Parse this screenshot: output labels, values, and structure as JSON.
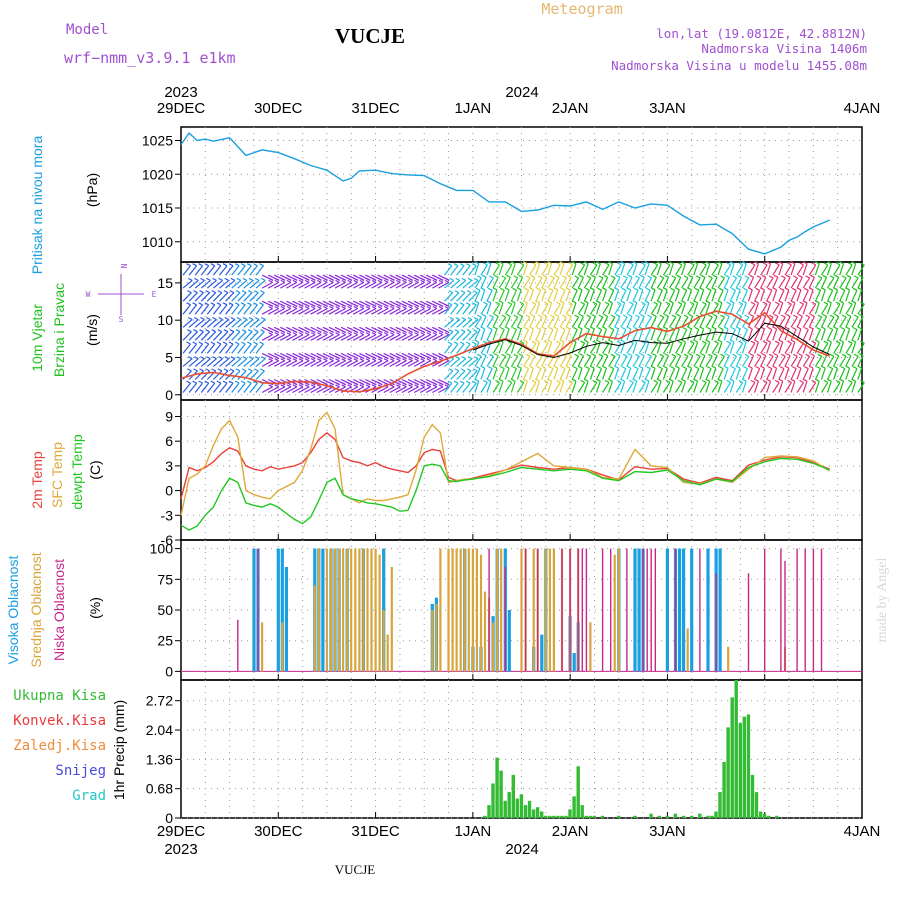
{
  "header": {
    "title": "VUCJE",
    "model_label": "Model",
    "model_name": "wrf−nmm_v3.9.1  e1km",
    "meteogram_label": "Meteogram",
    "lonlat": "lon,lat (19.0812E, 42.8812N)",
    "elevation": "Nadmorska Visina 1406m",
    "model_elevation": "Nadmorska Visina u modelu 1455.08m",
    "footer_station": "VUCJE",
    "watermark": "made by Angel"
  },
  "colors": {
    "pressure": "#1a9fe0",
    "wind_label": "#22c022",
    "temp_2m": "#e8403a",
    "temp_sfc": "#e0a838",
    "dewpoint": "#22c822",
    "cloud_high": "#1a9fe0",
    "cloud_mid": "#d9a43a",
    "cloud_low": "#c8288a",
    "precip_total": "#33bb33",
    "precip_conv": "#e83a3a",
    "precip_frozen": "#f08c3a",
    "snow": "#4a4ae0",
    "graupel": "#22c8c8",
    "model_text": "#a050d0",
    "meteogram_text": "#e8b870"
  },
  "chart_data": [
    {
      "type": "line",
      "name": "pressure",
      "ylabel_1": "Pritisak na nivou mora",
      "ylabel_2": "(hPa)",
      "ylim": [
        1007,
        1027
      ],
      "yticks": [
        1010,
        1015,
        1020,
        1025
      ],
      "x_hours": [
        0,
        2,
        4,
        6,
        8,
        12,
        16,
        20,
        24,
        28,
        32,
        36,
        40,
        42,
        44,
        48,
        52,
        56,
        60,
        64,
        68,
        72,
        76,
        80,
        84,
        88,
        92,
        96,
        100,
        104,
        108,
        112,
        116,
        120,
        124,
        128,
        132,
        136,
        140,
        144,
        148,
        150,
        152,
        154,
        156,
        160
      ],
      "values": [
        1024.4,
        1026.1,
        1025.0,
        1025.2,
        1024.9,
        1025.4,
        1022.8,
        1023.6,
        1023.2,
        1022.3,
        1021.3,
        1020.6,
        1019.0,
        1019.4,
        1020.5,
        1020.6,
        1020.1,
        1019.9,
        1019.8,
        1018.6,
        1017.6,
        1017.6,
        1015.9,
        1015.9,
        1014.5,
        1014.7,
        1015.4,
        1015.3,
        1015.9,
        1014.8,
        1015.9,
        1015.0,
        1015.6,
        1015.4,
        1013.8,
        1012.5,
        1012.6,
        1011.2,
        1008.9,
        1008.2,
        1009.2,
        1010.2,
        1010.7,
        1011.5,
        1012.2,
        1013.2
      ]
    },
    {
      "type": "line",
      "name": "wind",
      "ylabel_1": "10m Vjetar",
      "ylabel_2": "Brzina i Pravac",
      "ylabel_3": "(m/s)",
      "compass": "N",
      "compass_w": "W",
      "compass_e": "E",
      "compass_s": "S",
      "ylim": [
        -0.7,
        17.8
      ],
      "yticks": [
        0,
        5,
        10,
        15
      ],
      "speed_x": [
        0,
        4,
        8,
        12,
        16,
        20,
        24,
        28,
        32,
        36,
        40,
        44,
        48,
        52,
        56,
        60,
        64,
        68,
        72,
        76,
        80,
        84,
        88,
        92,
        96,
        100,
        104,
        108,
        112,
        116,
        120,
        124,
        128,
        132,
        136,
        140,
        144,
        148,
        152,
        156,
        160
      ],
      "speed_values": [
        2.2,
        2.8,
        3.0,
        2.6,
        2.3,
        1.6,
        1.5,
        1.8,
        1.7,
        1.2,
        0.5,
        0.4,
        0.8,
        1.5,
        2.8,
        3.8,
        4.5,
        5.3,
        6.2,
        7.0,
        7.5,
        6.8,
        5.5,
        5.2,
        7.0,
        8.2,
        7.8,
        7.5,
        8.6,
        9.0,
        8.5,
        9.2,
        10.5,
        11.2,
        10.8,
        9.5,
        11.0,
        8.6,
        7.4,
        6.0,
        5.2
      ],
      "dew_line_x": [
        72,
        76,
        80,
        84,
        88,
        92,
        96,
        100,
        104,
        108,
        112,
        116,
        120,
        124,
        128,
        132,
        136,
        140,
        144,
        148,
        152,
        156,
        160
      ],
      "dew_line_values": [
        6.0,
        6.8,
        7.4,
        6.6,
        5.4,
        5.0,
        5.6,
        6.5,
        7.0,
        6.6,
        7.3,
        7.0,
        6.9,
        7.5,
        8.0,
        8.4,
        8.2,
        7.2,
        9.6,
        9.2,
        7.8,
        6.4,
        5.4
      ]
    },
    {
      "type": "line",
      "name": "temperature",
      "ylabel_1": "2m Temp",
      "ylabel_2": "SFC Temp",
      "ylabel_3": "dewpt Temp",
      "ylabel_4": "(C)",
      "ylim": [
        -6,
        11
      ],
      "yticks": [
        -6,
        -3,
        0,
        3,
        6,
        9
      ],
      "x_hours": [
        0,
        2,
        4,
        6,
        8,
        10,
        12,
        14,
        16,
        18,
        20,
        22,
        24,
        26,
        28,
        30,
        32,
        34,
        36,
        38,
        40,
        42,
        44,
        46,
        48,
        50,
        52,
        54,
        56,
        58,
        60,
        62,
        64,
        66,
        68,
        70,
        72,
        76,
        80,
        84,
        88,
        92,
        96,
        100,
        104,
        108,
        112,
        116,
        120,
        124,
        128,
        132,
        136,
        140,
        144,
        148,
        152,
        156,
        160
      ],
      "series": [
        {
          "name": "2m Temp",
          "values": [
            -1.0,
            2.8,
            2.4,
            2.8,
            3.5,
            4.5,
            5.2,
            4.8,
            3.0,
            2.6,
            2.4,
            2.9,
            2.6,
            2.8,
            3.0,
            3.4,
            4.6,
            6.2,
            7.0,
            6.2,
            4.0,
            3.6,
            3.4,
            3.0,
            3.4,
            2.9,
            2.6,
            2.4,
            2.2,
            3.0,
            4.6,
            5.0,
            4.8,
            1.6,
            1.2,
            1.3,
            1.5,
            2.0,
            2.5,
            3.1,
            2.8,
            2.6,
            2.8,
            2.6,
            1.9,
            1.3,
            2.9,
            2.6,
            2.7,
            1.4,
            0.9,
            1.6,
            1.2,
            3.1,
            3.7,
            4.1,
            4.0,
            3.4,
            2.6
          ]
        },
        {
          "name": "SFC Temp",
          "values": [
            -3.0,
            1.5,
            2.0,
            3.0,
            5.5,
            7.5,
            8.5,
            6.5,
            0.0,
            -0.5,
            -0.8,
            -1.0,
            0.0,
            0.5,
            1.0,
            2.5,
            5.0,
            8.5,
            9.5,
            7.5,
            -0.5,
            -1.0,
            -1.5,
            -1.0,
            -1.2,
            -1.2,
            -1.0,
            -0.8,
            -0.5,
            2.5,
            6.5,
            8.0,
            7.0,
            1.0,
            1.2,
            1.4,
            1.4,
            1.8,
            2.5,
            3.5,
            4.5,
            3.0,
            2.8,
            2.6,
            1.6,
            1.4,
            5.0,
            3.0,
            2.8,
            1.0,
            0.8,
            1.4,
            1.0,
            2.6,
            4.0,
            4.2,
            4.1,
            3.6,
            2.4
          ]
        },
        {
          "name": "dewpt Temp",
          "values": [
            -4.2,
            -4.8,
            -4.3,
            -3.0,
            -2.0,
            0.0,
            1.5,
            1.0,
            -1.5,
            -1.8,
            -2.0,
            -1.6,
            -2.0,
            -2.8,
            -3.5,
            -4.0,
            -3.2,
            -1.2,
            1.0,
            1.5,
            -0.5,
            -1.0,
            -1.2,
            -1.5,
            -1.6,
            -1.8,
            -2.0,
            -2.5,
            -2.4,
            0.0,
            3.0,
            3.2,
            3.0,
            1.2,
            1.1,
            1.3,
            1.4,
            1.7,
            2.2,
            2.8,
            2.6,
            2.4,
            2.6,
            2.4,
            1.5,
            1.2,
            2.3,
            2.2,
            2.5,
            1.2,
            0.7,
            1.4,
            1.1,
            2.8,
            3.5,
            3.9,
            3.8,
            3.3,
            2.5
          ]
        }
      ]
    },
    {
      "type": "bar",
      "name": "cloudiness",
      "ylabel_1": "Visoka Oblacnost",
      "ylabel_2": "Srednja Oblacnost",
      "ylabel_3": "Niska Oblacnost",
      "ylabel_4": "(%)",
      "ylim": [
        -7,
        107
      ],
      "yticks": [
        0,
        25,
        50,
        75,
        100
      ],
      "series": [
        {
          "name": "Visoka Oblacnost",
          "x_hours": [
            18,
            19,
            24,
            25,
            26,
            33,
            34,
            35,
            37,
            38,
            39,
            41,
            45,
            50,
            62,
            63,
            70,
            72,
            74,
            77,
            78,
            80,
            81,
            87,
            89,
            90,
            96,
            97,
            98,
            108,
            112,
            113,
            114,
            120,
            122,
            123,
            124,
            126,
            130,
            132,
            133
          ],
          "values": [
            100,
            100,
            100,
            100,
            85,
            100,
            100,
            100,
            100,
            100,
            100,
            100,
            100,
            100,
            55,
            60,
            100,
            20,
            20,
            45,
            100,
            100,
            50,
            20,
            30,
            100,
            45,
            15,
            40,
            100,
            100,
            100,
            100,
            100,
            100,
            100,
            100,
            100,
            100,
            100,
            100
          ]
        },
        {
          "name": "Srednja Oblacnost",
          "x_hours": [
            20,
            25,
            33,
            34,
            36,
            37,
            38,
            39,
            40,
            41,
            42,
            43,
            44,
            45,
            46,
            47,
            48,
            49,
            50,
            51,
            52,
            62,
            63,
            64,
            66,
            67,
            68,
            69,
            70,
            71,
            72,
            73,
            74,
            75,
            76,
            77,
            78,
            79,
            84,
            85,
            87,
            88,
            90,
            91,
            92,
            94,
            96,
            98,
            101,
            107,
            108,
            125,
            135,
            149
          ],
          "values": [
            40,
            40,
            70,
            100,
            100,
            100,
            100,
            100,
            100,
            100,
            100,
            100,
            100,
            100,
            100,
            100,
            100,
            95,
            50,
            30,
            85,
            50,
            55,
            100,
            100,
            100,
            100,
            100,
            100,
            100,
            100,
            100,
            95,
            65,
            60,
            40,
            100,
            100,
            100,
            100,
            100,
            100,
            100,
            100,
            100,
            100,
            100,
            100,
            40,
            95,
            100,
            35,
            20,
            20
          ]
        },
        {
          "name": "Niska Oblacnost",
          "x_hours": [
            14,
            19,
            76,
            80,
            85,
            88,
            94,
            96,
            98,
            99,
            100,
            104,
            106,
            110,
            114,
            115,
            116,
            117,
            122,
            128,
            132,
            140,
            144,
            148,
            149,
            152,
            154,
            156,
            158
          ],
          "values": [
            42,
            100,
            100,
            85,
            100,
            100,
            100,
            100,
            100,
            100,
            100,
            100,
            100,
            100,
            100,
            100,
            100,
            100,
            100,
            100,
            80,
            80,
            100,
            100,
            90,
            100,
            100,
            100,
            100
          ]
        }
      ]
    },
    {
      "type": "bar",
      "name": "precipitation",
      "ylabel_1": "1hr Precip (mm)",
      "legend": [
        "Ukupna  Kisa",
        "Konvek.Kisa",
        "Zaledj.Kisa",
        "Snijeg",
        "Grad"
      ],
      "ylim": [
        0,
        3.2
      ],
      "yticks": [
        0,
        0.68,
        1.36,
        2.04,
        2.72
      ],
      "ytick_labels": [
        "0",
        "0.68",
        "1.36",
        "2.04",
        "2.72"
      ],
      "x_hours": [
        75,
        76,
        77,
        78,
        79,
        80,
        81,
        82,
        83,
        84,
        85,
        86,
        87,
        88,
        89,
        90,
        91,
        92,
        93,
        94,
        95,
        96,
        97,
        98,
        99,
        100,
        101,
        102,
        104,
        108,
        112,
        116,
        118,
        120,
        122,
        124,
        126,
        128,
        130,
        131,
        132,
        133,
        134,
        135,
        136,
        137,
        138,
        139,
        140,
        141,
        142,
        143,
        144,
        145,
        147
      ],
      "values": [
        0.05,
        0.3,
        0.8,
        1.4,
        1.1,
        0.4,
        0.6,
        1.0,
        0.45,
        0.55,
        0.3,
        0.4,
        0.2,
        0.25,
        0.15,
        0.05,
        0.05,
        0.05,
        0.05,
        0.05,
        0.05,
        0.2,
        0.5,
        1.2,
        0.3,
        0.05,
        0.05,
        0.05,
        0.05,
        0.05,
        0.05,
        0.1,
        0.05,
        0.05,
        0.1,
        0.05,
        0.05,
        0.1,
        0.05,
        0.05,
        0.15,
        0.6,
        1.3,
        2.1,
        2.8,
        3.2,
        2.2,
        2.35,
        2.4,
        1.0,
        0.6,
        0.15,
        0.1,
        0.05,
        0.05
      ]
    }
  ],
  "time_axis": {
    "tick_labels": [
      "29DEC",
      "30DEC",
      "31DEC",
      "1JAN",
      "2JAN",
      "3JAN",
      "4JAN"
    ],
    "year_start": "2023",
    "year_mid": "2024"
  }
}
